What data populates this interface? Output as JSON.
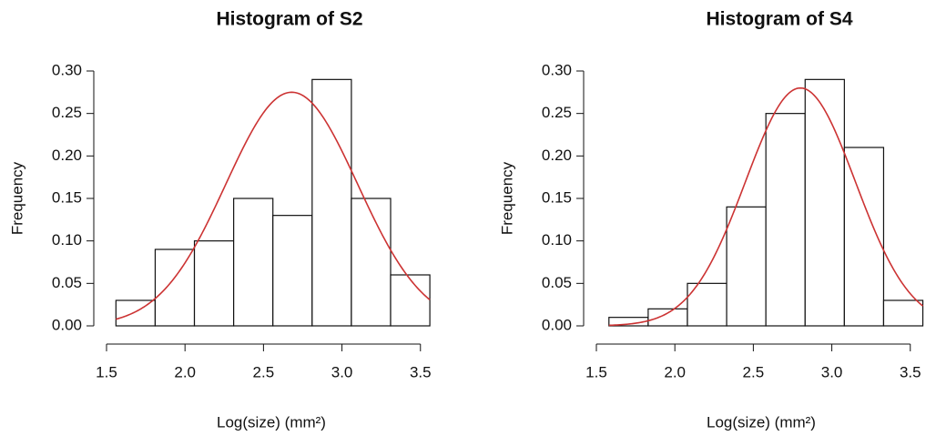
{
  "chart_data": [
    {
      "type": "histogram",
      "title": "Histogram of S2",
      "xlabel": "Log(size) (mm²)",
      "ylabel": "Frequency",
      "bins": [
        1.56,
        1.81,
        2.06,
        2.31,
        2.56,
        2.81,
        3.06,
        3.31,
        3.56
      ],
      "values": [
        0.03,
        0.09,
        0.1,
        0.15,
        0.13,
        0.29,
        0.15,
        0.06
      ],
      "color": "#ffffff",
      "curve": {
        "color": "#cc3333",
        "mean": 2.68,
        "sd": 0.42,
        "peak": 0.275
      },
      "xlim": [
        1.5,
        3.6
      ],
      "ylim": [
        0,
        0.3
      ],
      "xticks": [
        1.5,
        {
          "value": 2,
          "label": "2.0"
        },
        2.5,
        {
          "value": 3,
          "label": "3.0"
        },
        3.5
      ],
      "yticks": [
        {
          "value": 0,
          "label": "0.00"
        },
        0.05,
        {
          "value": 0.1,
          "label": "0.10"
        },
        0.15,
        {
          "value": 0.2,
          "label": "0.20"
        },
        0.25,
        {
          "value": 0.3,
          "label": "0.30"
        }
      ]
    },
    {
      "type": "histogram",
      "title": "Histogram of S4",
      "xlabel": "Log(size) (mm²)",
      "ylabel": "Frequency",
      "bins": [
        1.58,
        1.83,
        2.08,
        2.33,
        2.58,
        2.83,
        3.08,
        3.33,
        3.58
      ],
      "values": [
        0.01,
        0.02,
        0.05,
        0.14,
        0.25,
        0.29,
        0.21,
        0.03
      ],
      "color": "#ffffff",
      "curve": {
        "color": "#cc3333",
        "mean": 2.8,
        "sd": 0.35,
        "peak": 0.28
      },
      "xlim": [
        1.5,
        3.6
      ],
      "ylim": [
        0,
        0.3
      ],
      "xticks": [
        1.5,
        {
          "value": 2,
          "label": "2.0"
        },
        2.5,
        {
          "value": 3,
          "label": "3.0"
        },
        3.5
      ],
      "yticks": [
        {
          "value": 0,
          "label": "0.00"
        },
        0.05,
        {
          "value": 0.1,
          "label": "0.10"
        },
        0.15,
        {
          "value": 0.2,
          "label": "0.20"
        },
        0.25,
        {
          "value": 0.3,
          "label": "0.30"
        }
      ]
    }
  ]
}
